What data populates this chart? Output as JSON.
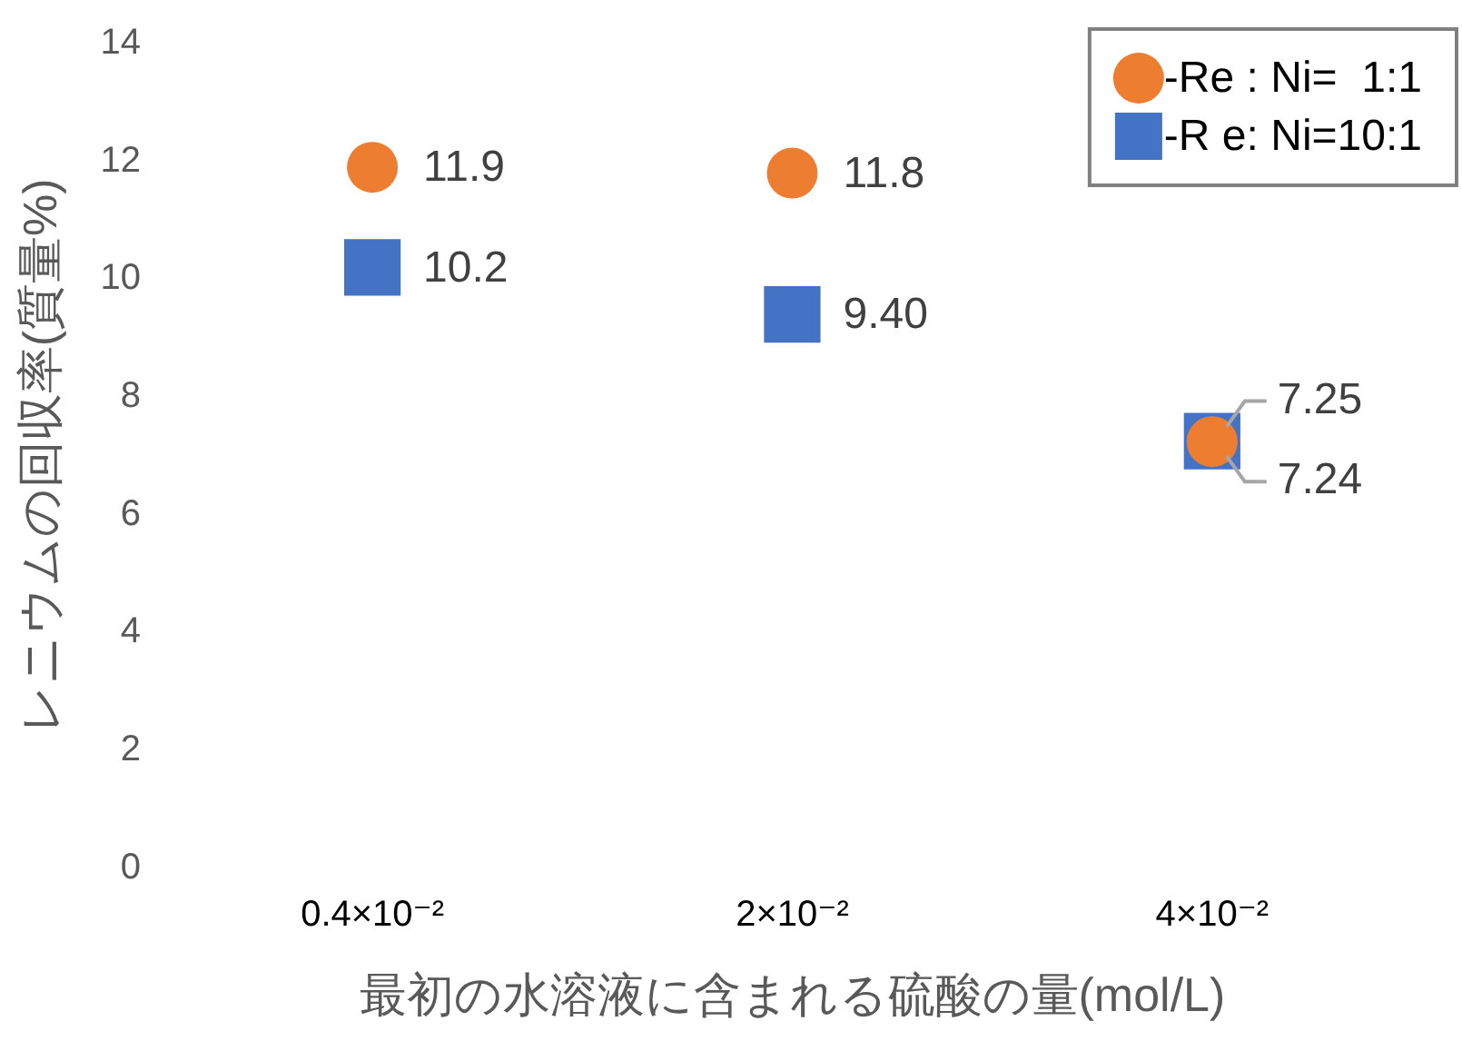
{
  "chart_data": {
    "type": "scatter",
    "xlabel": "最初の水溶液に含まれる硫酸の量(mol/L)",
    "ylabel": "レニウムの回収率(質量%)",
    "categories": [
      "0.4×10⁻²",
      "2×10⁻²",
      "4×10⁻²"
    ],
    "series": [
      {
        "name": "-Re : Ni=  1:1",
        "color": "#ed7d31",
        "marker": "circle",
        "values": [
          11.9,
          11.8,
          7.24
        ]
      },
      {
        "name": "-R e: Ni=10:1",
        "color": "#4472c4",
        "marker": "square",
        "values": [
          10.2,
          9.4,
          7.25
        ],
        "value_labels": [
          "10.2",
          "9.40",
          "7.25"
        ]
      }
    ],
    "ylim": [
      0,
      14
    ],
    "yticks": [
      0,
      2,
      4,
      6,
      8,
      10,
      12,
      14
    ],
    "grid": false,
    "legend": "top right",
    "data_labels": true
  }
}
